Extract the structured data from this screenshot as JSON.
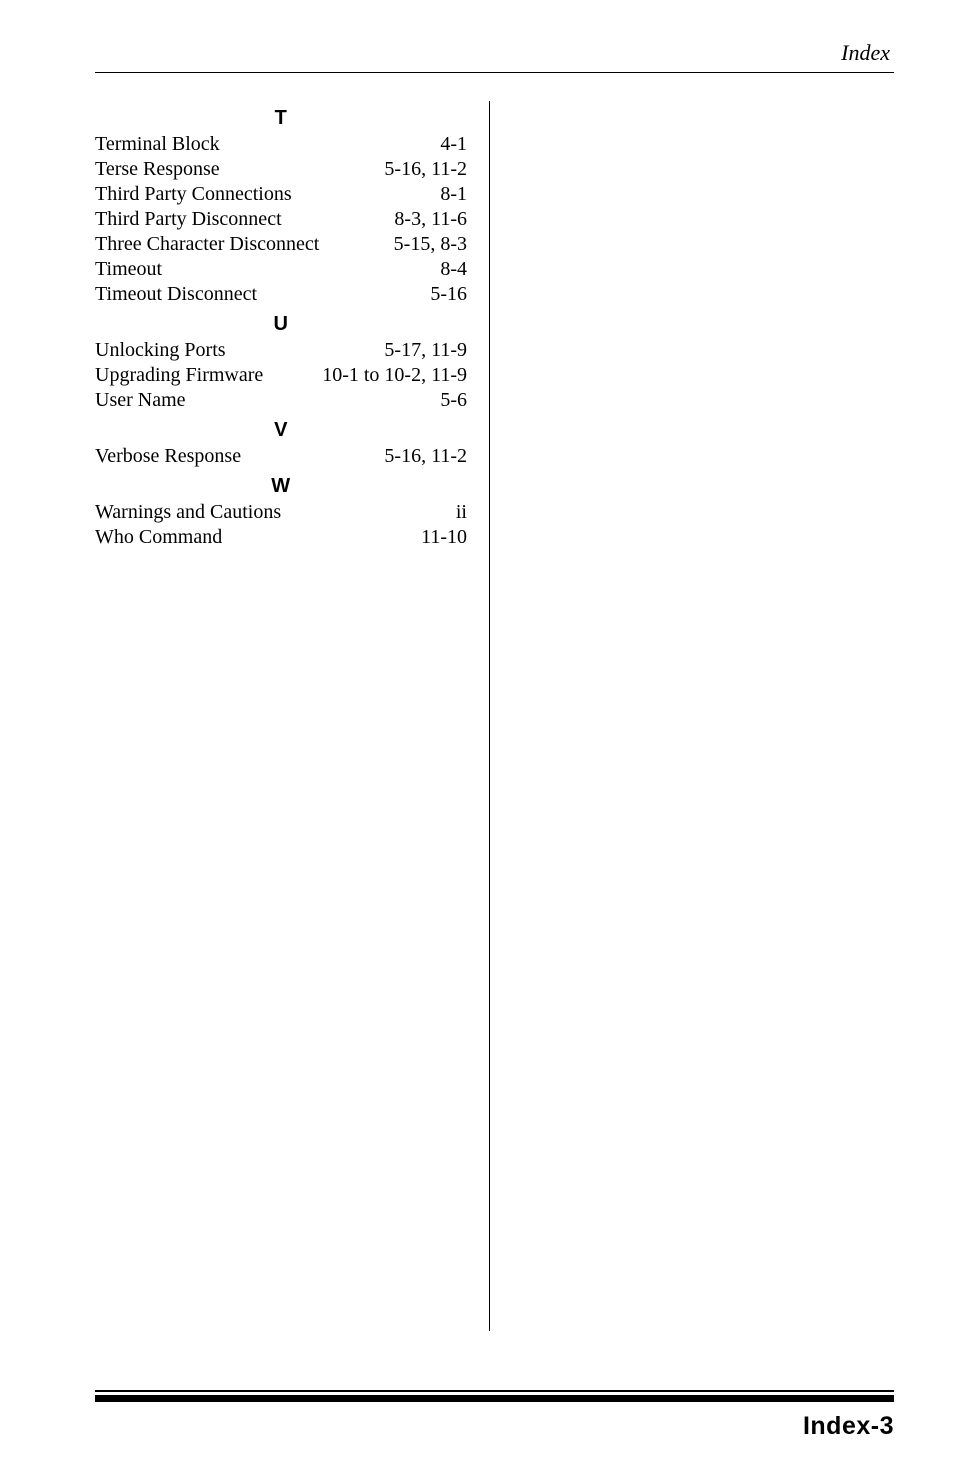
{
  "running_head": "Index",
  "page_number": "Index-3",
  "sections": [
    {
      "letter": "T",
      "entries": [
        {
          "term": "Terminal Block",
          "pages": "4-1"
        },
        {
          "term": "Terse Response",
          "pages": "5-16, 11-2"
        },
        {
          "term": "Third Party Connections",
          "pages": "8-1"
        },
        {
          "term": "Third Party Disconnect",
          "pages": "8-3, 11-6"
        },
        {
          "term": "Three Character Disconnect",
          "pages": "5-15, 8-3"
        },
        {
          "term": "Timeout",
          "pages": "8-4"
        },
        {
          "term": "Timeout Disconnect",
          "pages": "5-16"
        }
      ]
    },
    {
      "letter": "U",
      "entries": [
        {
          "term": "Unlocking Ports",
          "pages": "5-17, 11-9"
        },
        {
          "term": "Upgrading Firmware",
          "pages": "10-1 to 10-2, 11-9"
        },
        {
          "term": "User Name",
          "pages": "5-6"
        }
      ]
    },
    {
      "letter": "V",
      "entries": [
        {
          "term": "Verbose Response",
          "pages": "5-16, 11-2"
        }
      ]
    },
    {
      "letter": "W",
      "entries": [
        {
          "term": "Warnings and Cautions",
          "pages": "ii"
        },
        {
          "term": "Who Command",
          "pages": "11-10"
        }
      ]
    }
  ]
}
